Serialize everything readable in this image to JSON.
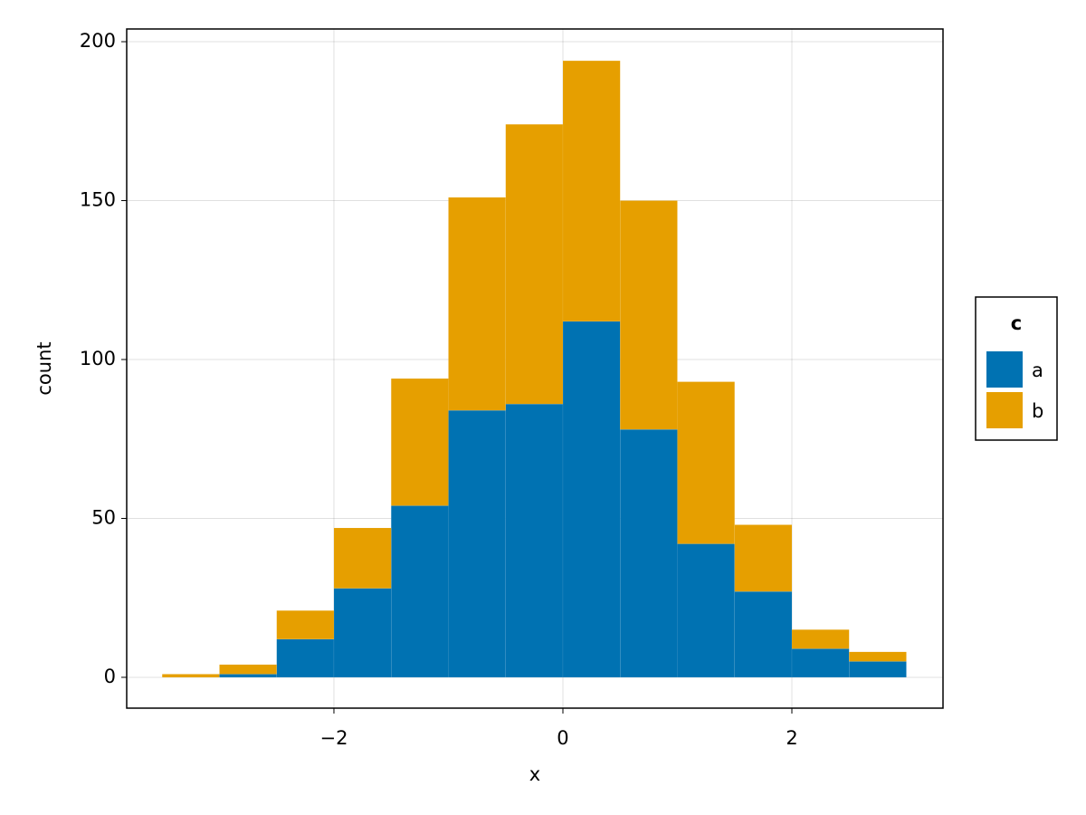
{
  "chart_data": {
    "type": "histogram",
    "stacked": true,
    "x_label": "x",
    "y_label": "count",
    "bins": [
      -3.5,
      -3,
      -2.5,
      -2,
      -1.5,
      -1,
      -0.5,
      0,
      0.5,
      1,
      1.5,
      2,
      2.5,
      3
    ],
    "series": [
      {
        "name": "a",
        "color": "#0072b2",
        "values": [
          0,
          1,
          12,
          28,
          54,
          84,
          86,
          112,
          78,
          42,
          27,
          9,
          5
        ]
      },
      {
        "name": "b",
        "color": "#e69f00",
        "values": [
          1,
          3,
          9,
          19,
          40,
          67,
          88,
          82,
          72,
          51,
          21,
          6,
          3
        ]
      }
    ],
    "legend_title": "c",
    "legend_position": "right",
    "xlim": [
      -3.81,
      3.32
    ],
    "xticks": [
      {
        "value": -2,
        "label": "−2"
      },
      0,
      2
    ],
    "ylim": [
      -9.7,
      204
    ],
    "yticks": [
      0,
      50,
      100,
      150,
      200
    ],
    "grid": true
  }
}
